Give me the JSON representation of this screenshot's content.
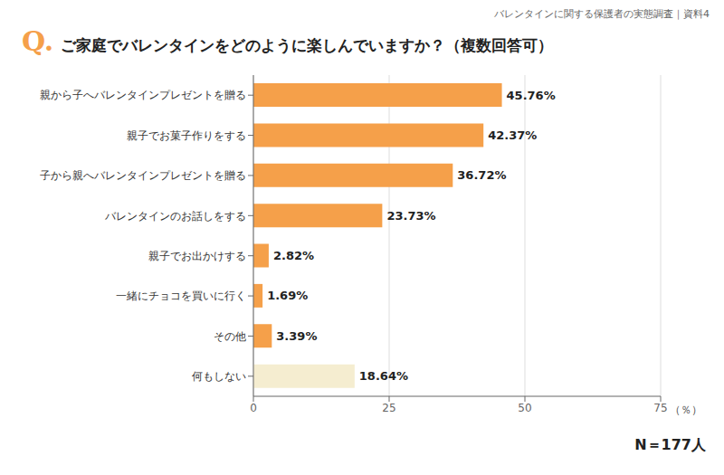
{
  "chart_data": {
    "type": "bar",
    "orientation": "horizontal",
    "title": "ご家庭でバレンタインをどのように楽しんでいますか？（複数回答可）",
    "annotations": [
      "Q.",
      "バレンタインに関する保護者の実態調査｜資料4",
      "N＝177人"
    ],
    "xlabel": "（％）",
    "categories": [
      "親から子へバレンタインプレゼントを贈る",
      "親子でお菓子作りをする",
      "子から親へバレンタインプレゼントを贈る",
      "バレンタインのお話しをする",
      "親子でお出かけする",
      "一緒にチョコを買いに行く",
      "その他",
      "何もしない"
    ],
    "values": [
      45.76,
      42.37,
      36.72,
      23.73,
      2.82,
      1.69,
      3.39,
      18.64
    ],
    "value_labels": [
      "45.76%",
      "42.37%",
      "36.72%",
      "23.73%",
      "2.82%",
      "1.69%",
      "3.39%",
      "18.64%"
    ],
    "colors": [
      "#F5A04A",
      "#F5A04A",
      "#F5A04A",
      "#F5A04A",
      "#F5A04A",
      "#F5A04A",
      "#F5A04A",
      "#F5EDD0"
    ],
    "xlim": [
      0,
      75
    ],
    "xticks": [
      0,
      25,
      50,
      75
    ],
    "grid": true,
    "data_labels": true
  }
}
